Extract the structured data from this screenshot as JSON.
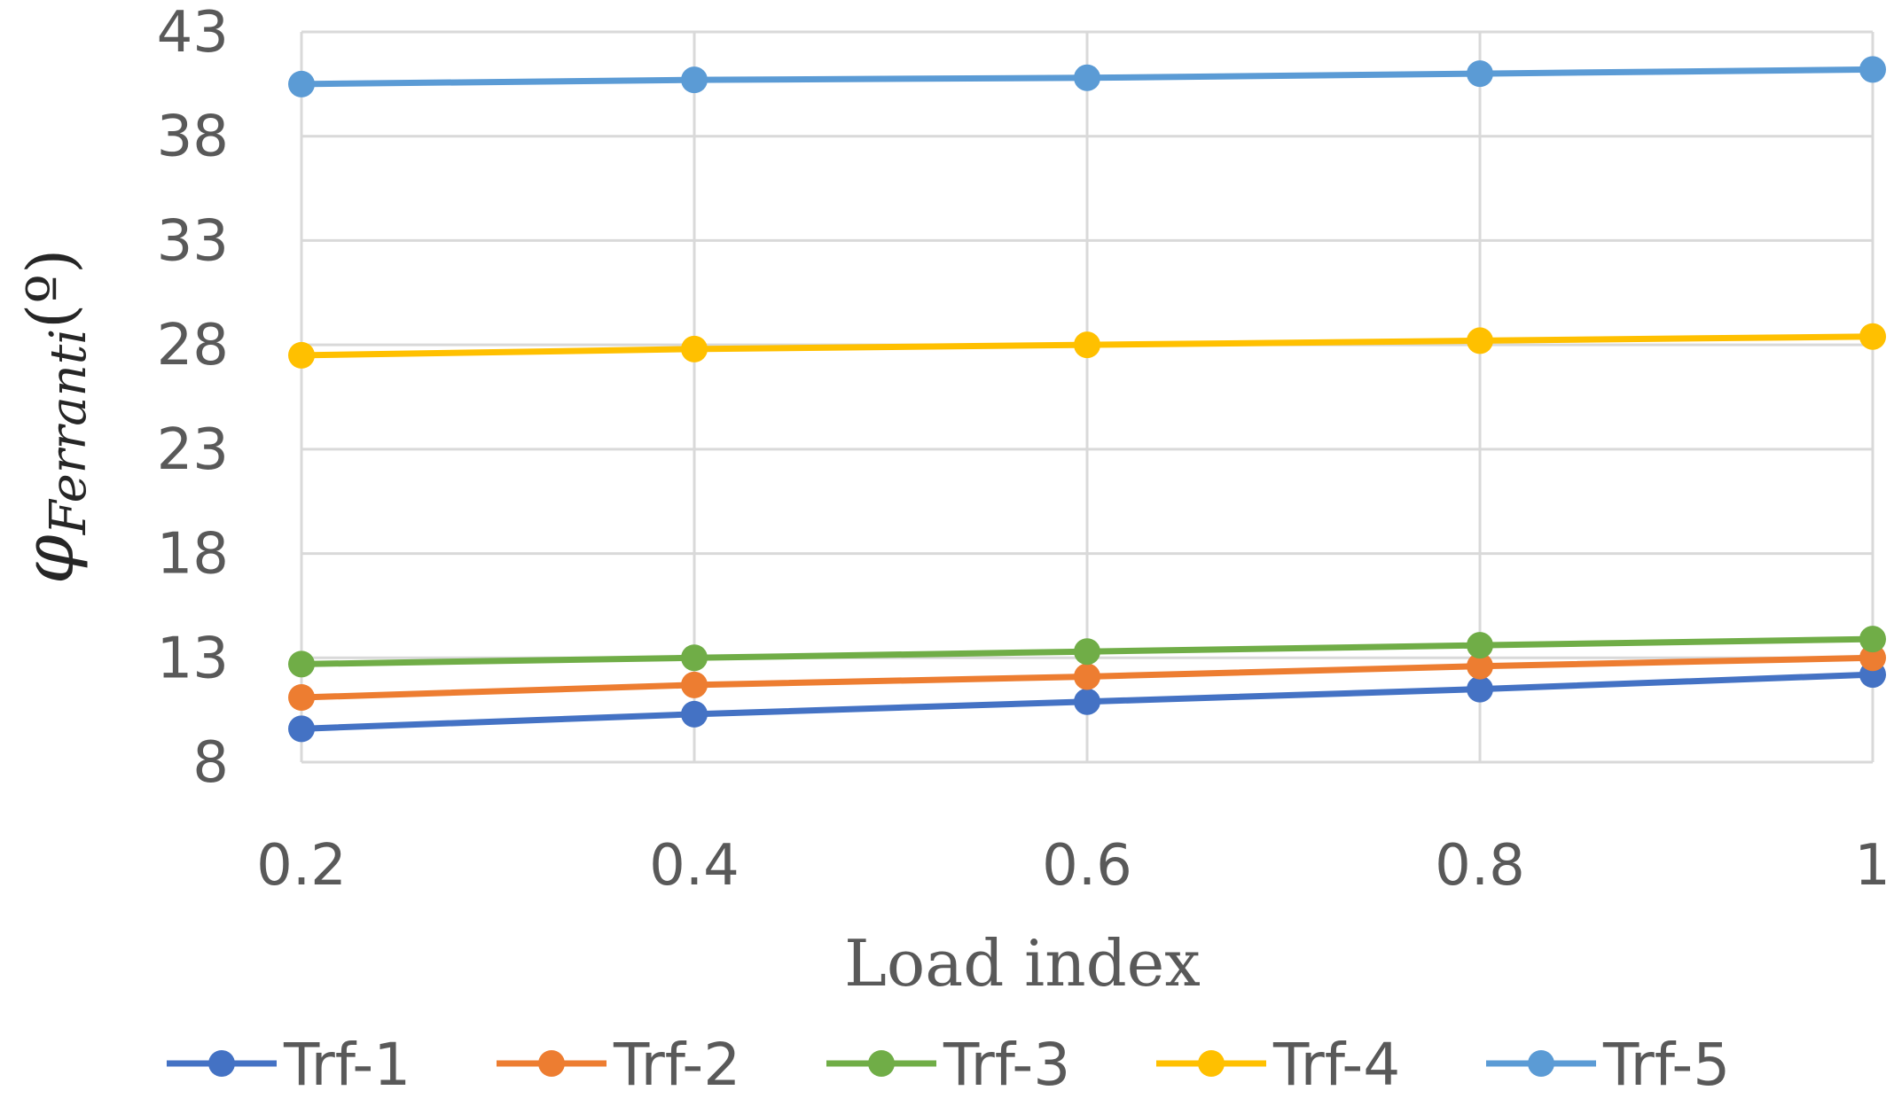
{
  "chart_data": {
    "type": "line",
    "title": "",
    "xlabel": "Load index",
    "ylabel": {
      "symbol": "φ",
      "subscript": "Ferranti",
      "unit": "(º)"
    },
    "x": [
      0.2,
      0.4,
      0.6,
      0.8,
      1
    ],
    "x_tick_labels": [
      "0.2",
      "0.4",
      "0.6",
      "0.8",
      "1"
    ],
    "ylim": [
      8,
      43
    ],
    "y_ticks": [
      8,
      13,
      18,
      23,
      28,
      33,
      38,
      43
    ],
    "grid": true,
    "legend_position": "bottom",
    "series": [
      {
        "name": "Trf-1",
        "color": "#4472C4",
        "values": [
          9.6,
          10.3,
          10.9,
          11.5,
          12.2
        ]
      },
      {
        "name": "Trf-2",
        "color": "#ED7D31",
        "values": [
          11.1,
          11.7,
          12.1,
          12.6,
          13.0
        ]
      },
      {
        "name": "Trf-3",
        "color": "#70AD47",
        "values": [
          12.7,
          13.0,
          13.3,
          13.6,
          13.9
        ]
      },
      {
        "name": "Trf-4",
        "color": "#FFC000",
        "values": [
          27.5,
          27.8,
          28.0,
          28.2,
          28.4
        ]
      },
      {
        "name": "Trf-5",
        "color": "#5B9BD5",
        "values": [
          40.5,
          40.7,
          40.8,
          41.0,
          41.2
        ]
      }
    ]
  }
}
